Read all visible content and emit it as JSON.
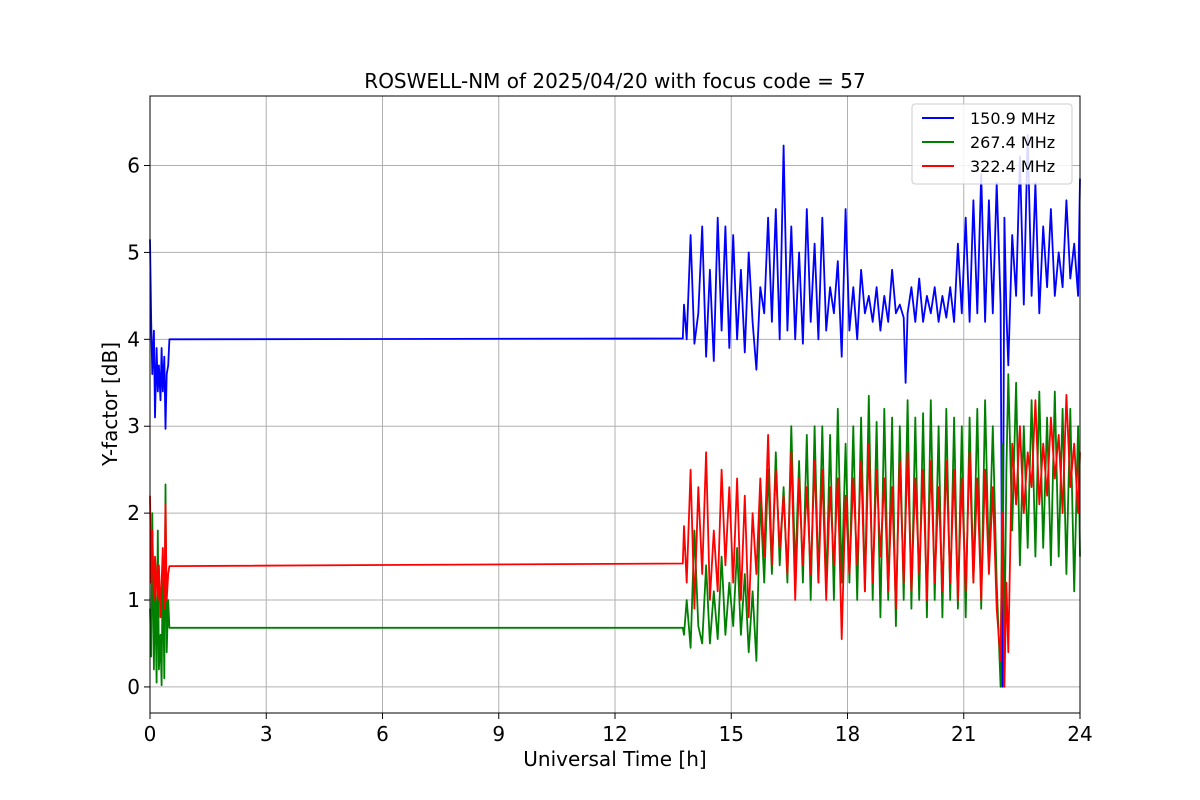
{
  "chart_data": {
    "type": "line",
    "title": "ROSWELL-NM of 2025/04/20 with focus code = 57",
    "xlabel": "Universal Time [h]",
    "ylabel": "Y-factor [dB]",
    "xlim": [
      0,
      24
    ],
    "ylim": [
      -0.3,
      6.8
    ],
    "xticks": [
      0,
      3,
      6,
      9,
      12,
      15,
      18,
      21,
      24
    ],
    "yticks": [
      0,
      1,
      2,
      3,
      4,
      5,
      6
    ],
    "grid": true,
    "legend_position": "top-right",
    "series": [
      {
        "name": "150.9 MHz",
        "color": "#0000ff",
        "x": [
          0,
          0.03,
          0.06,
          0.1,
          0.13,
          0.17,
          0.2,
          0.23,
          0.27,
          0.3,
          0.33,
          0.37,
          0.4,
          0.43,
          0.47,
          0.5,
          0.5,
          13.75,
          13.78,
          13.85,
          13.95,
          14.05,
          14.15,
          14.25,
          14.35,
          14.45,
          14.55,
          14.65,
          14.75,
          14.85,
          14.95,
          15.05,
          15.15,
          15.25,
          15.35,
          15.45,
          15.55,
          15.65,
          15.75,
          15.85,
          15.95,
          16.05,
          16.15,
          16.25,
          16.35,
          16.45,
          16.55,
          16.65,
          16.75,
          16.85,
          16.95,
          17.05,
          17.15,
          17.25,
          17.35,
          17.45,
          17.55,
          17.65,
          17.75,
          17.85,
          17.95,
          18.05,
          18.15,
          18.25,
          18.35,
          18.45,
          18.55,
          18.65,
          18.75,
          18.85,
          18.95,
          19.05,
          19.15,
          19.25,
          19.35,
          19.45,
          19.5,
          19.55,
          19.65,
          19.75,
          19.85,
          19.95,
          20.05,
          20.15,
          20.25,
          20.35,
          20.45,
          20.55,
          20.65,
          20.75,
          20.85,
          20.95,
          21.05,
          21.15,
          21.25,
          21.35,
          21.45,
          21.55,
          21.65,
          21.75,
          21.85,
          21.95,
          22.0,
          22.05,
          22.1,
          22.15,
          22.25,
          22.35,
          22.45,
          22.55,
          22.65,
          22.75,
          22.85,
          22.95,
          23.05,
          23.15,
          23.25,
          23.35,
          23.45,
          23.55,
          23.65,
          23.75,
          23.85,
          23.95,
          24.0
        ],
        "y": [
          5.15,
          4.2,
          3.6,
          4.1,
          3.1,
          3.9,
          3.4,
          3.7,
          3.3,
          3.9,
          3.4,
          3.8,
          2.97,
          3.6,
          3.7,
          4.0,
          4.0,
          4.01,
          4.4,
          4.0,
          5.2,
          3.95,
          4.3,
          5.3,
          3.8,
          4.8,
          3.75,
          5.4,
          4.1,
          5.3,
          3.9,
          5.2,
          4.0,
          4.8,
          3.85,
          5.0,
          4.2,
          3.65,
          4.6,
          4.3,
          5.4,
          4.2,
          5.5,
          4.0,
          6.23,
          4.1,
          5.3,
          4.0,
          5.0,
          3.95,
          5.5,
          4.2,
          5.1,
          4.0,
          5.4,
          4.1,
          4.6,
          4.3,
          4.9,
          3.8,
          5.5,
          4.1,
          4.6,
          4.0,
          4.8,
          4.3,
          4.5,
          4.2,
          4.6,
          4.1,
          4.5,
          4.2,
          4.8,
          4.3,
          4.4,
          4.25,
          3.5,
          4.3,
          4.6,
          4.2,
          4.7,
          4.2,
          4.5,
          4.3,
          4.6,
          4.2,
          4.5,
          4.25,
          4.6,
          4.2,
          5.1,
          4.3,
          5.4,
          4.2,
          5.6,
          4.3,
          5.9,
          4.2,
          5.6,
          4.3,
          5.8,
          4.4,
          0.0,
          5.4,
          4.3,
          3.7,
          5.2,
          4.5,
          6.1,
          4.4,
          6.35,
          4.5,
          5.8,
          4.3,
          5.3,
          4.6,
          5.5,
          4.5,
          5.0,
          4.6,
          5.6,
          4.7,
          5.1,
          4.5,
          5.85
        ]
      },
      {
        "name": "267.4 MHz",
        "color": "#008000",
        "x": [
          0,
          0.03,
          0.06,
          0.1,
          0.13,
          0.17,
          0.2,
          0.23,
          0.27,
          0.3,
          0.33,
          0.37,
          0.4,
          0.43,
          0.47,
          0.5,
          0.5,
          13.75,
          13.78,
          13.85,
          13.95,
          14.05,
          14.15,
          14.25,
          14.35,
          14.45,
          14.55,
          14.65,
          14.75,
          14.85,
          14.95,
          15.05,
          15.15,
          15.25,
          15.35,
          15.45,
          15.55,
          15.65,
          15.75,
          15.85,
          15.95,
          16.05,
          16.15,
          16.25,
          16.35,
          16.45,
          16.55,
          16.65,
          16.75,
          16.85,
          16.95,
          17.05,
          17.15,
          17.25,
          17.35,
          17.45,
          17.55,
          17.65,
          17.75,
          17.85,
          17.95,
          18.05,
          18.15,
          18.25,
          18.35,
          18.45,
          18.55,
          18.65,
          18.75,
          18.85,
          18.95,
          19.05,
          19.15,
          19.25,
          19.35,
          19.45,
          19.55,
          19.65,
          19.75,
          19.85,
          19.95,
          20.05,
          20.15,
          20.25,
          20.35,
          20.45,
          20.55,
          20.65,
          20.75,
          20.85,
          20.95,
          21.05,
          21.15,
          21.25,
          21.35,
          21.45,
          21.55,
          21.65,
          21.75,
          21.85,
          21.95,
          22.0,
          22.05,
          22.1,
          22.15,
          22.25,
          22.35,
          22.45,
          22.55,
          22.65,
          22.75,
          22.85,
          22.95,
          23.05,
          23.15,
          23.25,
          23.35,
          23.45,
          23.55,
          23.65,
          23.75,
          23.85,
          23.95,
          24.0
        ],
        "y": [
          0.9,
          0.35,
          2.0,
          0.2,
          1.3,
          0.05,
          1.8,
          0.2,
          0.6,
          0.02,
          1.5,
          0.1,
          2.33,
          0.4,
          1.0,
          0.68,
          0.68,
          0.68,
          0.6,
          1.0,
          0.45,
          1.8,
          0.7,
          0.5,
          1.4,
          0.5,
          1.1,
          0.55,
          1.5,
          0.6,
          1.2,
          0.7,
          1.6,
          0.6,
          1.3,
          0.4,
          1.1,
          0.3,
          2.2,
          1.2,
          2.5,
          1.3,
          2.7,
          1.4,
          2.3,
          1.2,
          3.0,
          1.3,
          2.6,
          1.2,
          2.9,
          1.0,
          3.0,
          1.2,
          3.0,
          1.1,
          2.9,
          1.0,
          3.2,
          1.2,
          2.8,
          1.2,
          3.0,
          1.0,
          3.1,
          1.1,
          3.35,
          1.0,
          3.05,
          0.8,
          3.2,
          1.0,
          3.1,
          0.7,
          3.0,
          1.0,
          3.3,
          0.9,
          3.1,
          1.0,
          3.15,
          0.8,
          3.3,
          1.0,
          3.0,
          0.8,
          3.2,
          1.0,
          3.1,
          0.9,
          3.0,
          0.8,
          3.1,
          1.2,
          3.2,
          0.9,
          3.3,
          1.4,
          3.0,
          1.2,
          0.0,
          2.8,
          0.4,
          2.5,
          3.6,
          1.8,
          3.5,
          1.4,
          3.0,
          1.6,
          3.3,
          1.5,
          3.4,
          1.6,
          3.1,
          1.4,
          3.4,
          1.5,
          3.2,
          1.3,
          3.2,
          1.1,
          3.0,
          1.5
        ]
      },
      {
        "name": "322.4 MHz",
        "color": "#ff0000",
        "x": [
          0,
          0.03,
          0.06,
          0.1,
          0.13,
          0.17,
          0.2,
          0.23,
          0.27,
          0.3,
          0.33,
          0.37,
          0.4,
          0.43,
          0.47,
          0.5,
          0.5,
          13.75,
          13.78,
          13.85,
          13.95,
          14.05,
          14.15,
          14.25,
          14.35,
          14.45,
          14.55,
          14.65,
          14.75,
          14.85,
          14.95,
          15.05,
          15.15,
          15.25,
          15.35,
          15.45,
          15.55,
          15.65,
          15.75,
          15.85,
          15.95,
          16.05,
          16.15,
          16.25,
          16.35,
          16.45,
          16.55,
          16.65,
          16.75,
          16.85,
          16.95,
          17.05,
          17.15,
          17.25,
          17.35,
          17.45,
          17.55,
          17.65,
          17.75,
          17.85,
          17.95,
          18.05,
          18.15,
          18.25,
          18.35,
          18.45,
          18.55,
          18.65,
          18.75,
          18.85,
          18.95,
          19.05,
          19.15,
          19.25,
          19.35,
          19.45,
          19.55,
          19.65,
          19.75,
          19.85,
          19.95,
          20.05,
          20.15,
          20.25,
          20.35,
          20.45,
          20.55,
          20.65,
          20.75,
          20.85,
          20.95,
          21.05,
          21.15,
          21.25,
          21.35,
          21.45,
          21.55,
          21.65,
          21.75,
          21.85,
          21.95,
          22.0,
          22.05,
          22.1,
          22.15,
          22.25,
          22.35,
          22.45,
          22.55,
          22.65,
          22.75,
          22.85,
          22.95,
          23.05,
          23.15,
          23.25,
          23.35,
          23.45,
          23.55,
          23.65,
          23.75,
          23.85,
          23.95,
          24.0
        ],
        "y": [
          2.2,
          1.2,
          1.8,
          1.0,
          1.5,
          1.2,
          1.0,
          1.4,
          0.8,
          1.2,
          1.6,
          0.9,
          2.1,
          1.0,
          1.3,
          1.39,
          1.39,
          1.42,
          1.85,
          1.2,
          2.5,
          0.9,
          2.3,
          1.3,
          2.7,
          1.0,
          1.8,
          1.1,
          2.5,
          1.4,
          2.3,
          1.2,
          2.4,
          1.0,
          2.2,
          0.8,
          2.0,
          1.3,
          2.4,
          1.5,
          2.9,
          1.4,
          2.5,
          1.6,
          2.2,
          1.3,
          2.7,
          1.0,
          2.4,
          1.4,
          2.3,
          1.3,
          2.6,
          1.2,
          2.5,
          1.0,
          2.3,
          1.4,
          2.4,
          0.55,
          2.2,
          1.3,
          2.4,
          1.4,
          2.6,
          1.1,
          2.8,
          1.2,
          2.5,
          1.5,
          2.4,
          1.1,
          2.3,
          0.9,
          2.6,
          1.2,
          2.7,
          1.1,
          2.4,
          1.3,
          2.5,
          1.0,
          2.6,
          1.2,
          2.3,
          1.1,
          2.6,
          1.2,
          2.5,
          1.0,
          2.4,
          1.1,
          2.7,
          1.2,
          2.4,
          1.0,
          2.5,
          1.3,
          2.3,
          0.9,
          0.3,
          2.0,
          0.0,
          1.2,
          0.4,
          2.8,
          2.1,
          3.0,
          2.0,
          2.7,
          2.3,
          3.3,
          2.1,
          2.8,
          2.2,
          3.1,
          2.4,
          2.9,
          2.0,
          3.36,
          2.3,
          2.8,
          2.0,
          2.7
        ]
      }
    ]
  }
}
